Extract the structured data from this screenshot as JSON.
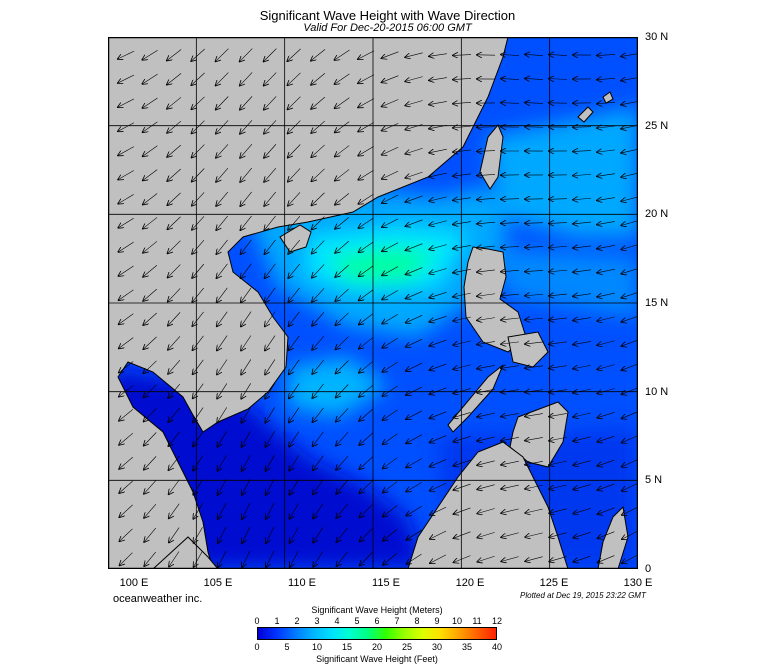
{
  "title": "Significant Wave Height with Wave Direction",
  "subtitle": "Valid For Dec-20-2015 06:00 GMT",
  "credit": "oceanweather inc.",
  "plotted": "Plotted at Dec 19, 2015 23:22 GMT",
  "lon_labels": [
    "100 E",
    "105 E",
    "110 E",
    "115 E",
    "120 E",
    "125 E",
    "130 E"
  ],
  "lat_labels": [
    "30 N",
    "25 N",
    "20 N",
    "15 N",
    "10 N",
    "5 N",
    "0"
  ],
  "colorbar": {
    "meters_title": "Significant Wave Height (Meters)",
    "feet_title": "Significant Wave Height (Feet)",
    "meters_ticks": [
      "0",
      "1",
      "2",
      "3",
      "4",
      "5",
      "6",
      "7",
      "8",
      "9",
      "10",
      "11",
      "12"
    ],
    "feet_ticks": [
      "0",
      "5",
      "10",
      "15",
      "20",
      "25",
      "30",
      "35",
      "40"
    ],
    "colors": [
      "#0000d6",
      "#0033ff",
      "#0077ff",
      "#00b4ff",
      "#00e0ff",
      "#00ffd0",
      "#00ff80",
      "#33ff00",
      "#99ff00",
      "#ddff00",
      "#ffdd00",
      "#ffa000",
      "#ff6000",
      "#ff2000"
    ]
  },
  "colors": {
    "land": "#c0c0c0",
    "deep_blue": "#0010d0",
    "mid_blue": "#0050ff",
    "light_blue": "#00a8ff",
    "cyan": "#00e6ff",
    "green": "#00ffa0",
    "grid": "#000000"
  },
  "map_extent": {
    "lon": [
      100,
      130
    ],
    "lat": [
      0,
      30
    ]
  }
}
